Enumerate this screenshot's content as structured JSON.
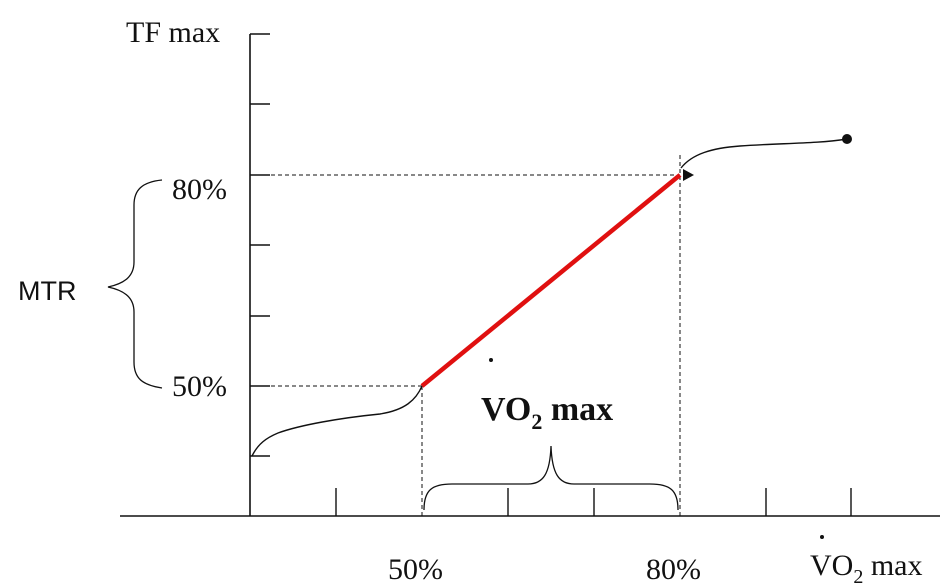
{
  "diagram": {
    "y_axis_title": "TF max",
    "y_label_80": "80%",
    "y_label_50": "50%",
    "mtr_label": "MTR",
    "vo2_center": {
      "main": "VO",
      "subscript": "2",
      "suffix": " max"
    },
    "x_label_50": "50%",
    "x_label_80": "80%",
    "x_axis_title": {
      "main": "VO",
      "subscript": "2",
      "suffix": " max"
    },
    "colors": {
      "line": "#111111",
      "highlight": "#e01010",
      "background": "#ffffff"
    }
  }
}
